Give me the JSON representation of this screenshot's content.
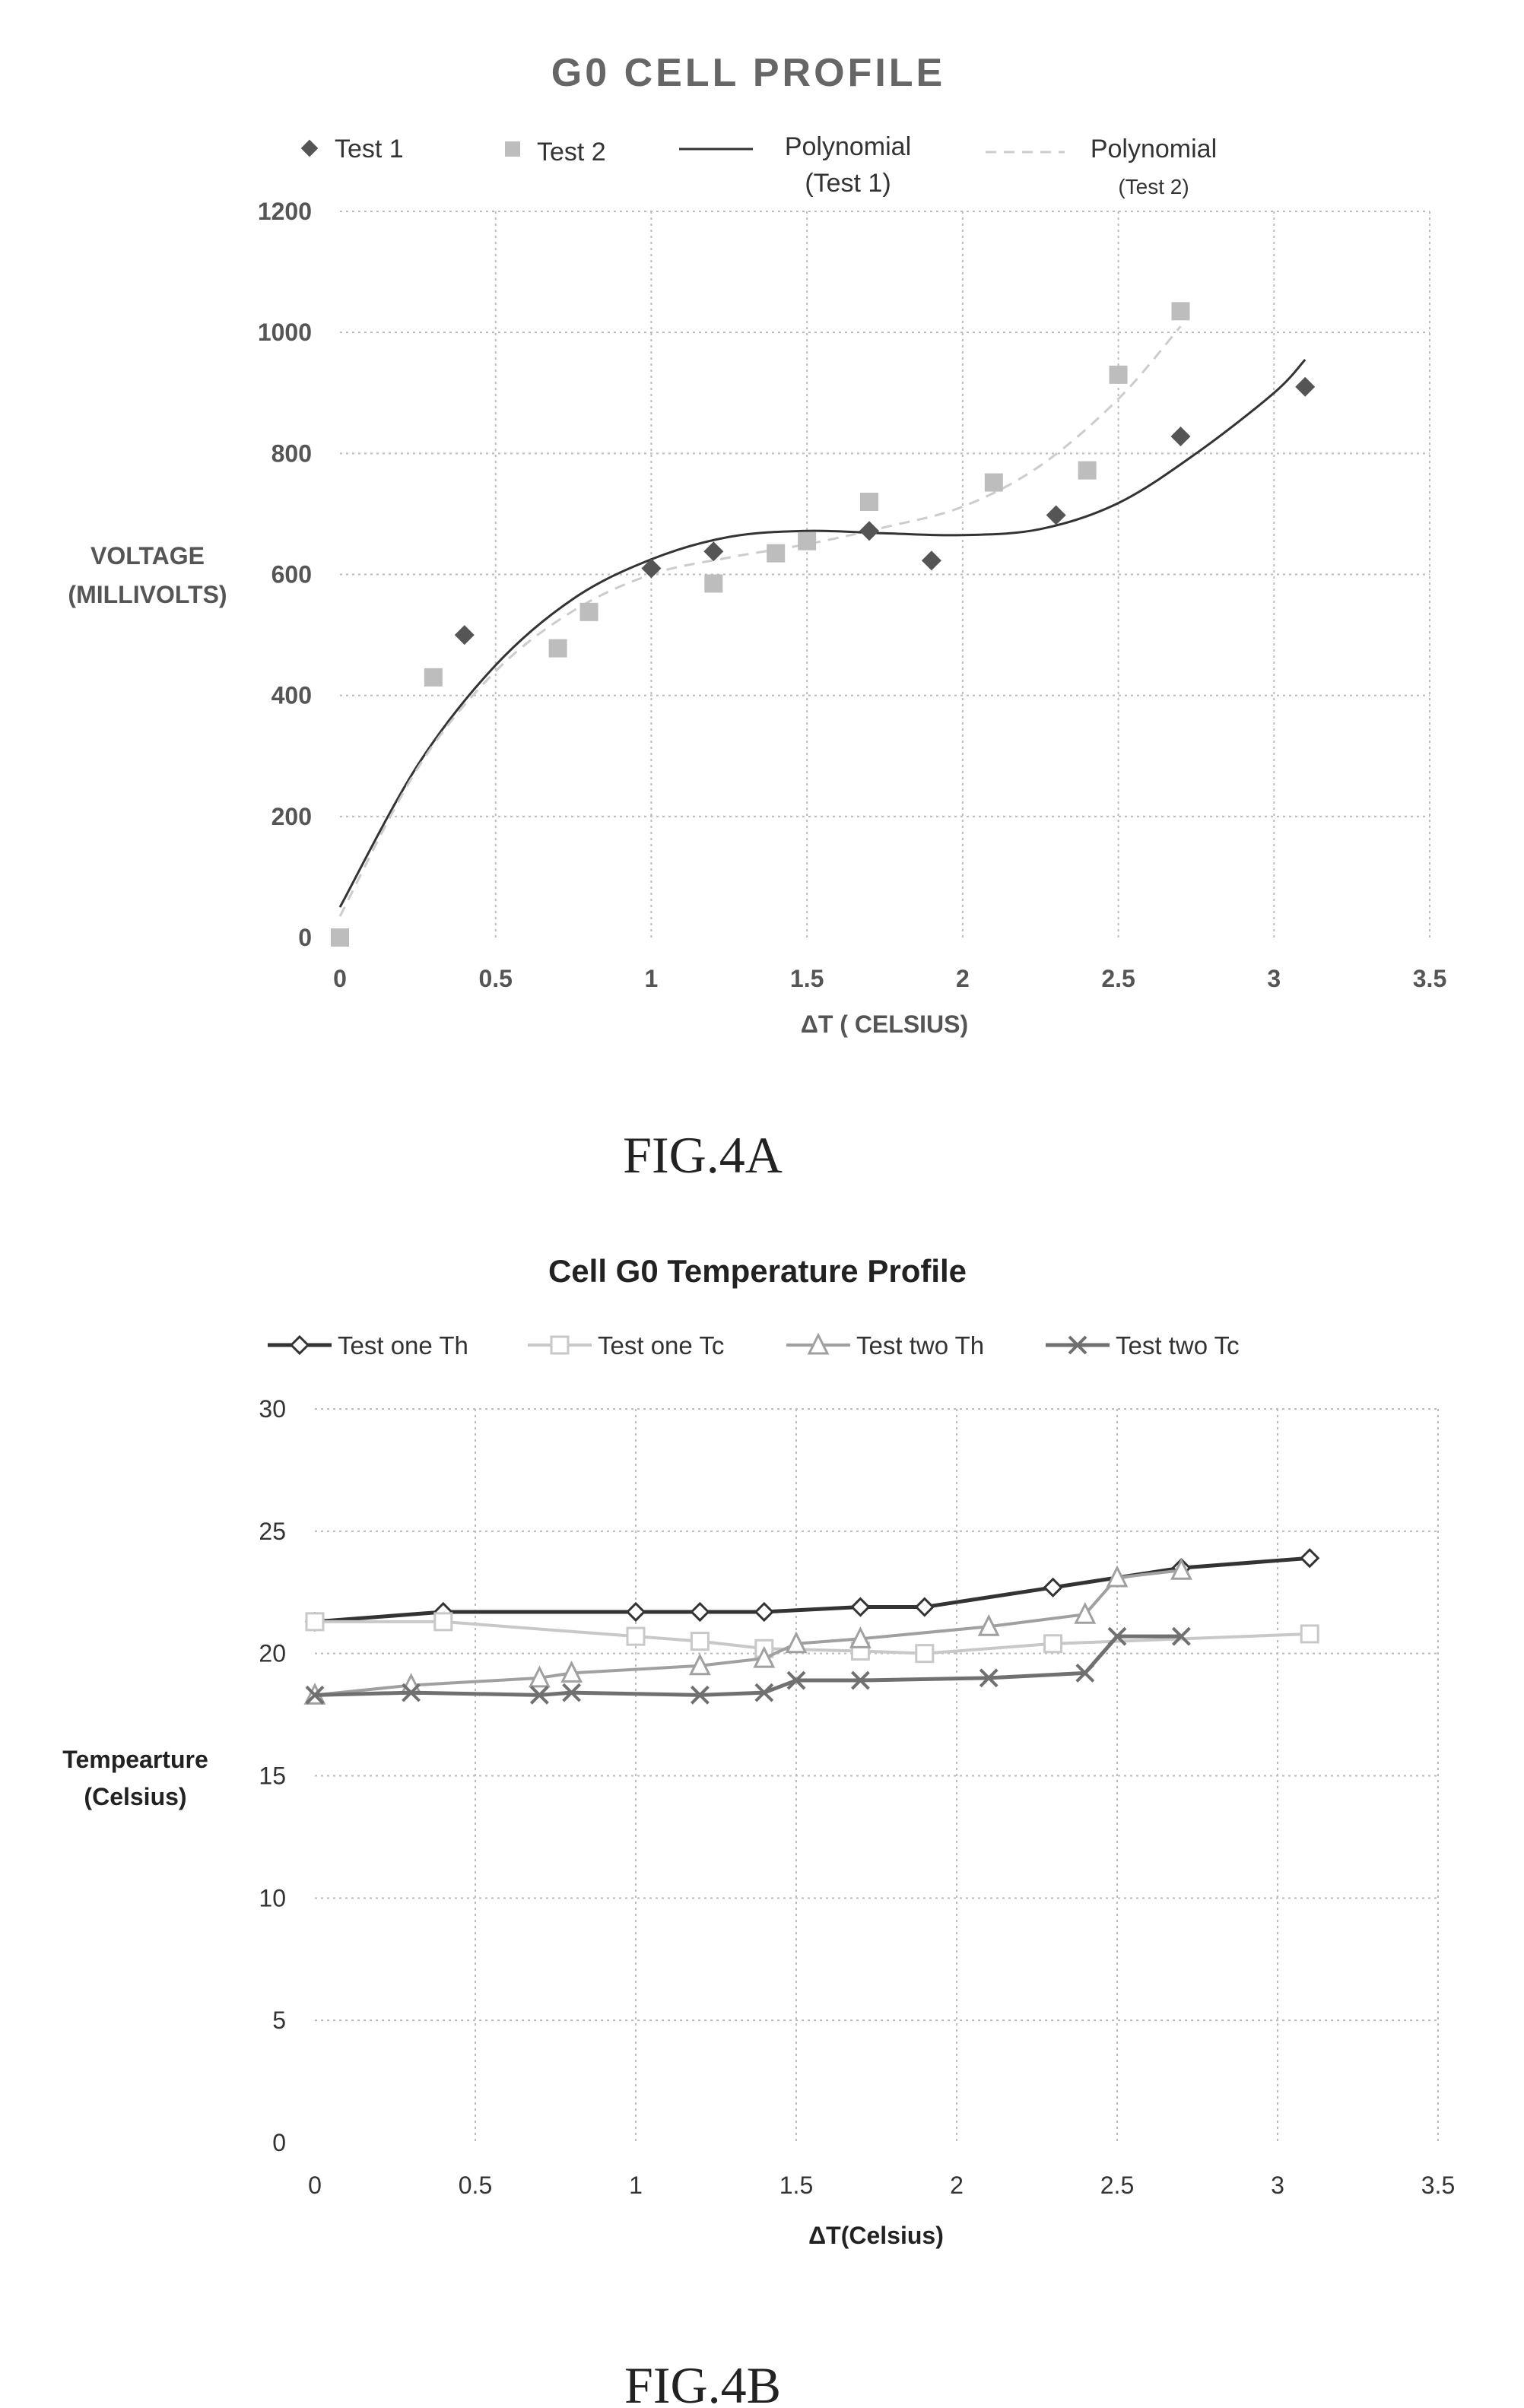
{
  "chart_data": [
    {
      "type": "scatter",
      "title": "G0 CELL PROFILE",
      "xlabel": "ΔT ( CELSIUS)",
      "ylabel": [
        "VOLTAGE",
        "(MILLIVOLTS)"
      ],
      "xlim": [
        0,
        3.5
      ],
      "ylim": [
        0,
        1200
      ],
      "x_ticks": [
        "0",
        "0.5",
        "1",
        "1.5",
        "2",
        "2.5",
        "3",
        "3.5"
      ],
      "y_ticks": [
        "0",
        "200",
        "400",
        "600",
        "800",
        "1000",
        "1200"
      ],
      "grid": true,
      "legend_position": "top",
      "series": [
        {
          "name": "Test 1",
          "marker": "diamond",
          "color": "#555555",
          "x": [
            0.4,
            1.0,
            1.2,
            1.7,
            1.9,
            2.3,
            2.7,
            3.1
          ],
          "y": [
            500,
            610,
            638,
            672,
            623,
            698,
            828,
            910
          ]
        },
        {
          "name": "Test 2",
          "marker": "square",
          "color": "#bdbdbd",
          "x": [
            0,
            0.3,
            0.7,
            0.8,
            1.2,
            1.4,
            1.5,
            1.7,
            2.1,
            2.4,
            2.5,
            2.7
          ],
          "y": [
            0,
            430,
            478,
            538,
            585,
            635,
            655,
            720,
            752,
            772,
            930,
            1035
          ]
        }
      ],
      "trendlines": [
        {
          "name": [
            "Polynomial",
            "(Test 1)"
          ],
          "style": "solid",
          "color": "#333333",
          "x": [
            0,
            0.25,
            0.5,
            0.75,
            1.0,
            1.25,
            1.5,
            1.75,
            2.0,
            2.25,
            2.5,
            2.75,
            3.0,
            3.1
          ],
          "y": [
            50,
            285,
            450,
            560,
            625,
            662,
            672,
            668,
            665,
            675,
            718,
            800,
            900,
            955
          ]
        },
        {
          "name": [
            "Polynomial",
            "(Test 2)"
          ],
          "style": "dashed",
          "color": "#cccccc",
          "x": [
            0,
            0.25,
            0.5,
            0.75,
            1.0,
            1.25,
            1.5,
            1.75,
            2.0,
            2.25,
            2.5,
            2.7
          ],
          "y": [
            35,
            280,
            440,
            540,
            600,
            628,
            650,
            678,
            712,
            780,
            890,
            1010
          ]
        }
      ]
    },
    {
      "type": "line",
      "title": "Cell G0 Temperature Profile",
      "xlabel": "ΔT(Celsius)",
      "ylabel": [
        "Tempearture",
        "(Celsius)"
      ],
      "xlim": [
        0,
        3.5
      ],
      "ylim": [
        0,
        30
      ],
      "x_ticks": [
        "0",
        "0.5",
        "1",
        "1.5",
        "2",
        "2.5",
        "3",
        "3.5"
      ],
      "y_ticks": [
        "0",
        "5",
        "10",
        "15",
        "20",
        "25",
        "30"
      ],
      "grid": true,
      "legend_position": "top",
      "series": [
        {
          "name": "Test one Th",
          "marker": "diamond",
          "color": "#333333",
          "width": 5,
          "x": [
            0,
            0.4,
            1.0,
            1.2,
            1.4,
            1.7,
            1.9,
            2.3,
            2.7,
            3.1
          ],
          "y": [
            21.3,
            21.7,
            21.7,
            21.7,
            21.7,
            21.9,
            21.9,
            22.7,
            23.5,
            23.9
          ]
        },
        {
          "name": "Test one Tc",
          "marker": "square",
          "color": "#c8c8c8",
          "width": 4,
          "x": [
            0,
            0.4,
            1.0,
            1.2,
            1.4,
            1.7,
            1.9,
            2.3,
            3.1
          ],
          "y": [
            21.3,
            21.3,
            20.7,
            20.5,
            20.2,
            20.1,
            20.0,
            20.4,
            20.8
          ]
        },
        {
          "name": "Test two Th",
          "marker": "triangle",
          "color": "#a0a0a0",
          "width": 4,
          "x": [
            0,
            0.3,
            0.7,
            0.8,
            1.2,
            1.4,
            1.5,
            1.7,
            2.1,
            2.4,
            2.5,
            2.7
          ],
          "y": [
            18.3,
            18.7,
            19.0,
            19.2,
            19.5,
            19.8,
            20.4,
            20.6,
            21.1,
            21.6,
            23.1,
            23.4
          ]
        },
        {
          "name": "Test two Tc",
          "marker": "x",
          "color": "#707070",
          "width": 5,
          "x": [
            0,
            0.3,
            0.7,
            0.8,
            1.2,
            1.4,
            1.5,
            1.7,
            2.1,
            2.4,
            2.5,
            2.7
          ],
          "y": [
            18.3,
            18.4,
            18.3,
            18.4,
            18.3,
            18.4,
            18.9,
            18.9,
            19.0,
            19.2,
            20.7,
            20.7
          ]
        }
      ]
    }
  ],
  "figure_labels": [
    "FIG.4A",
    "FIG.4B"
  ]
}
